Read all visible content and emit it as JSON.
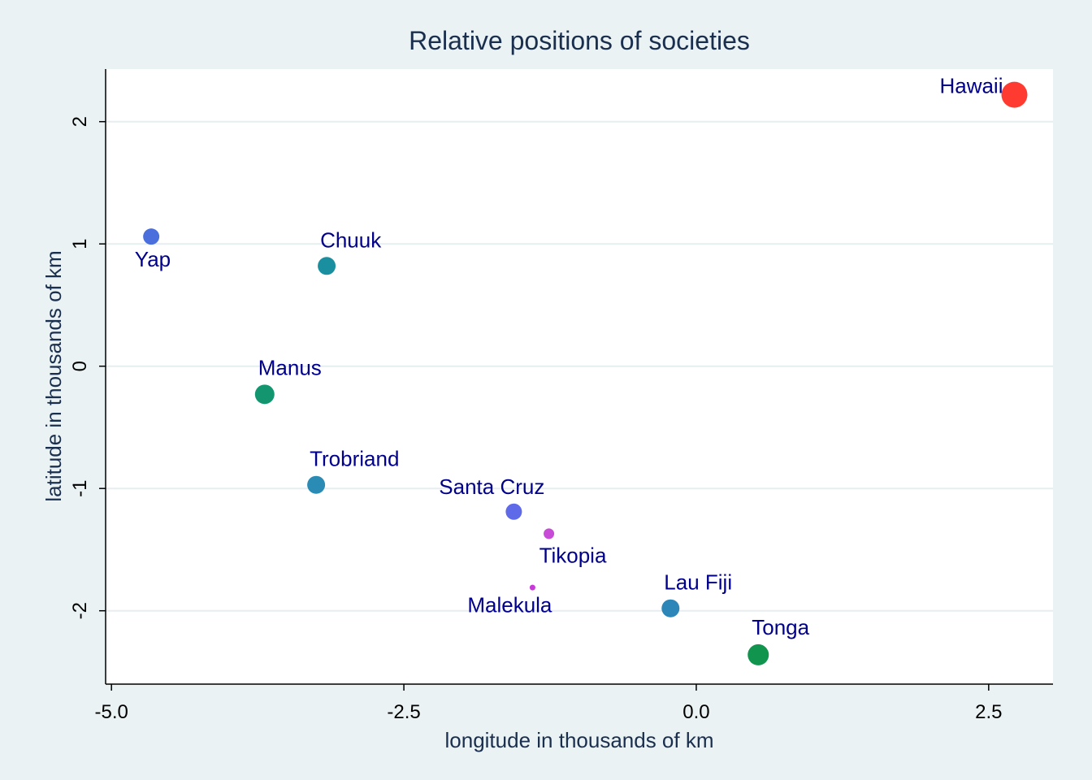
{
  "chart_data": {
    "type": "scatter",
    "title": "Relative positions of societies",
    "xlabel": "longitude in thousands of km",
    "ylabel": "latitude in thousands of km",
    "xlim": [
      -5.05,
      3.05
    ],
    "ylim": [
      -2.6,
      2.43
    ],
    "xticks": [
      -5.0,
      -2.5,
      0.0,
      2.5
    ],
    "xtick_labels": [
      "-5.0",
      "-2.5",
      "0.0",
      "2.5"
    ],
    "yticks": [
      -2,
      -1,
      0,
      1,
      2
    ],
    "ytick_labels": [
      "-2",
      "-1",
      "0",
      "1",
      "2"
    ],
    "grid": "horizontal",
    "background": "#eaf2f3",
    "plot_background": "#ffffff",
    "points": [
      {
        "label": "Yap",
        "x": -4.66,
        "y": 1.06,
        "size": 20,
        "color": "#4a6fdc",
        "label_pos": "below-left"
      },
      {
        "label": "Chuuk",
        "x": -3.16,
        "y": 0.82,
        "size": 22,
        "color": "#1a8fa0",
        "label_pos": "above-right"
      },
      {
        "label": "Manus",
        "x": -3.69,
        "y": -0.23,
        "size": 24,
        "color": "#139670",
        "label_pos": "above-right"
      },
      {
        "label": "Trobriand",
        "x": -3.25,
        "y": -0.97,
        "size": 22,
        "color": "#2a8bb5",
        "label_pos": "above-right"
      },
      {
        "label": "Santa Cruz",
        "x": -1.56,
        "y": -1.19,
        "size": 20,
        "color": "#5f6ae8",
        "label_pos": "above-left"
      },
      {
        "label": "Tikopia",
        "x": -1.26,
        "y": -1.37,
        "size": 13,
        "color": "#c84bd8",
        "label_pos": "below-right"
      },
      {
        "label": "Malekula",
        "x": -1.4,
        "y": -1.81,
        "size": 7,
        "color": "#c83ad8",
        "label_pos": "below-left"
      },
      {
        "label": "Lau Fiji",
        "x": -0.22,
        "y": -1.98,
        "size": 22,
        "color": "#2c86b8",
        "label_pos": "above-right"
      },
      {
        "label": "Tonga",
        "x": 0.53,
        "y": -2.36,
        "size": 26,
        "color": "#10944e",
        "label_pos": "above-right"
      },
      {
        "label": "Hawaii",
        "x": 2.72,
        "y": 2.22,
        "size": 32,
        "color": "#ff3a30",
        "label_pos": "left-up"
      }
    ]
  }
}
